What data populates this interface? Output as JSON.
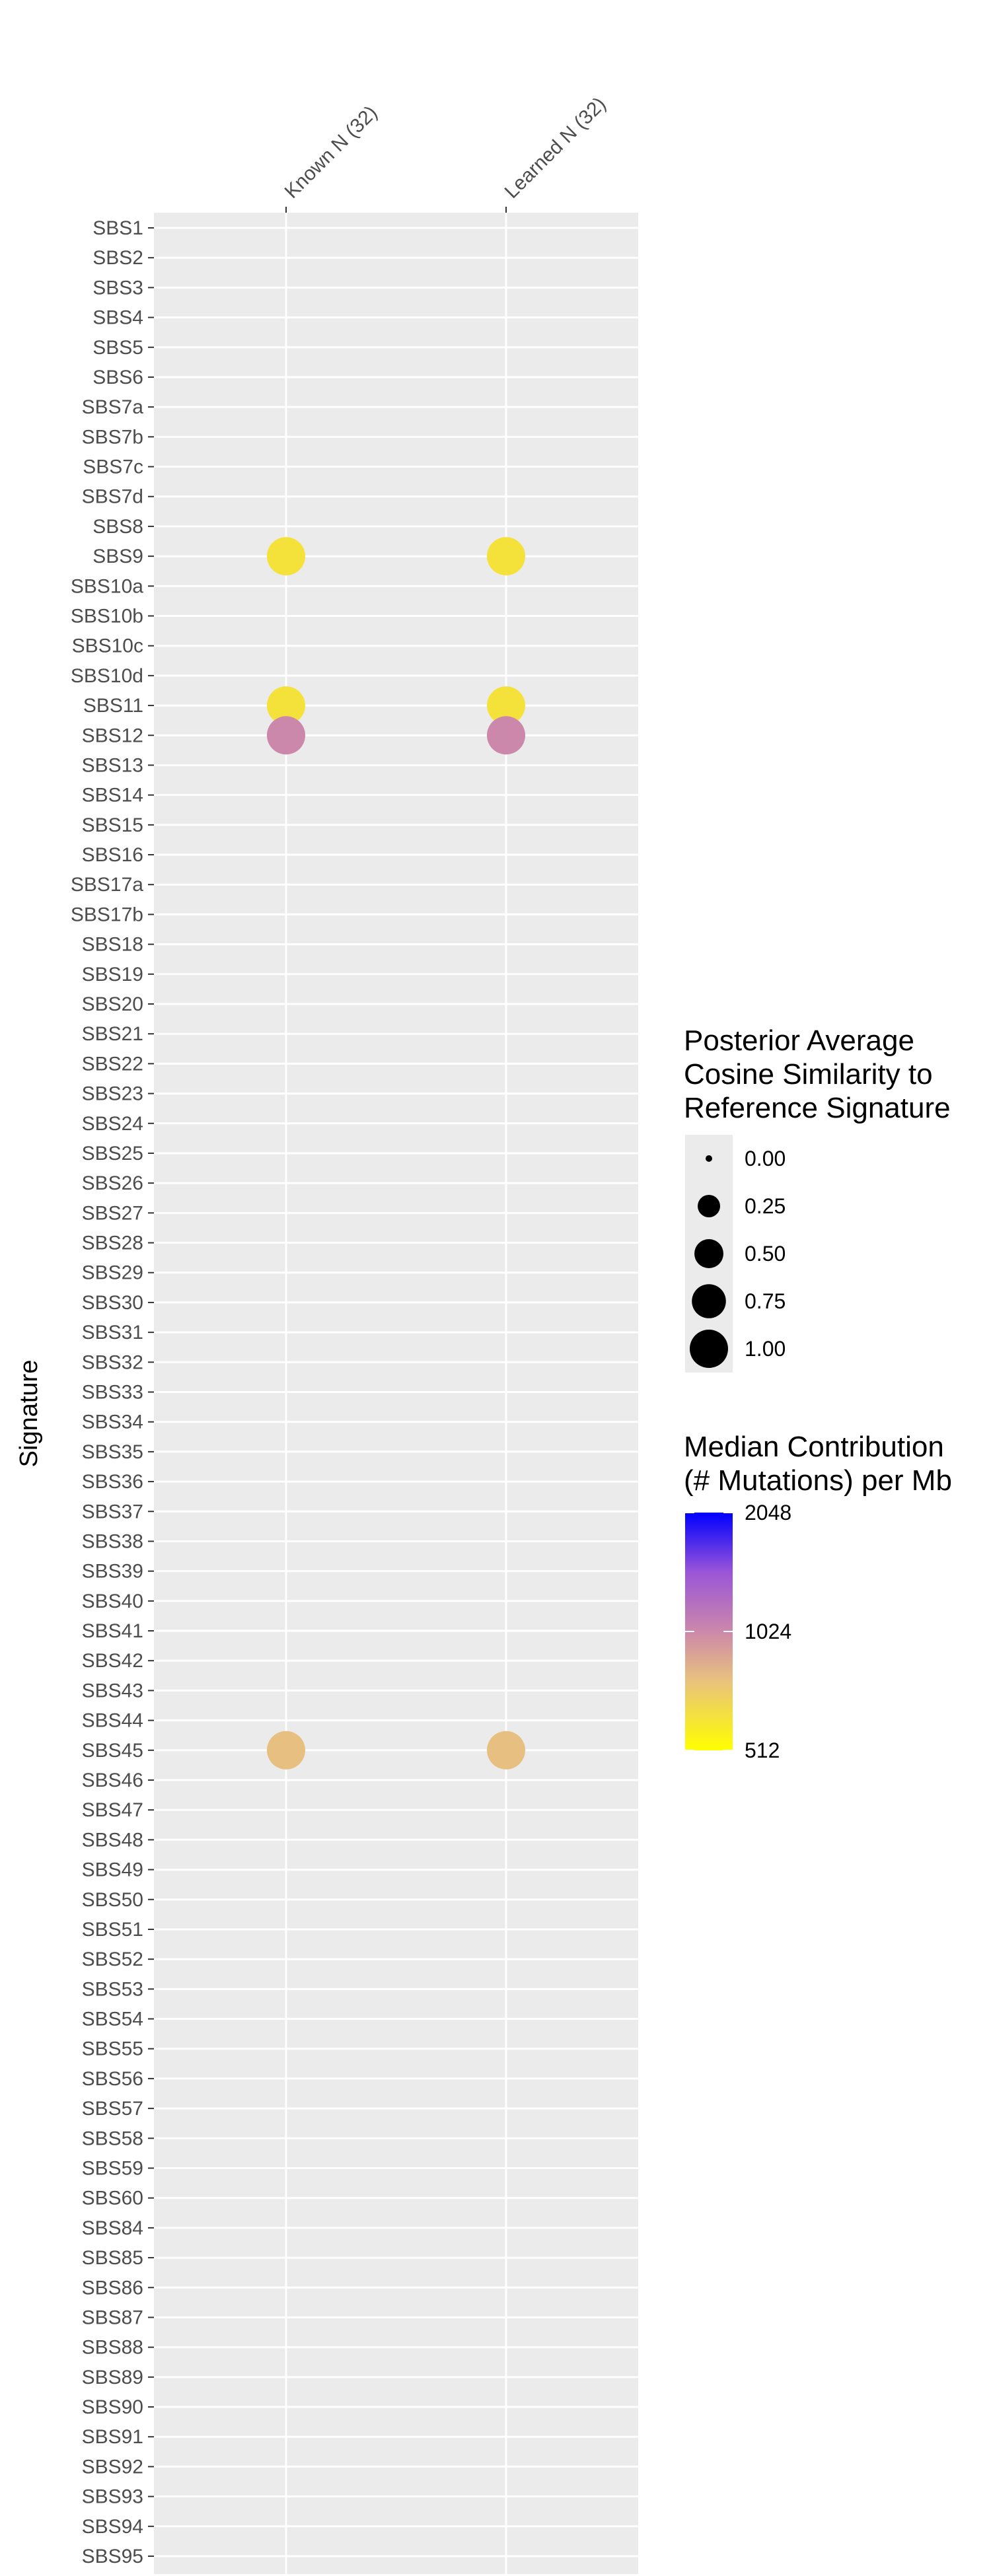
{
  "chart_data": {
    "type": "scatter",
    "ylabel": "Signature",
    "columns": [
      "Known N (32)",
      "Learned N (32)"
    ],
    "signatures": [
      "SBS1",
      "SBS2",
      "SBS3",
      "SBS4",
      "SBS5",
      "SBS6",
      "SBS7a",
      "SBS7b",
      "SBS7c",
      "SBS7d",
      "SBS8",
      "SBS9",
      "SBS10a",
      "SBS10b",
      "SBS10c",
      "SBS10d",
      "SBS11",
      "SBS12",
      "SBS13",
      "SBS14",
      "SBS15",
      "SBS16",
      "SBS17a",
      "SBS17b",
      "SBS18",
      "SBS19",
      "SBS20",
      "SBS21",
      "SBS22",
      "SBS23",
      "SBS24",
      "SBS25",
      "SBS26",
      "SBS27",
      "SBS28",
      "SBS29",
      "SBS30",
      "SBS31",
      "SBS32",
      "SBS33",
      "SBS34",
      "SBS35",
      "SBS36",
      "SBS37",
      "SBS38",
      "SBS39",
      "SBS40",
      "SBS41",
      "SBS42",
      "SBS43",
      "SBS44",
      "SBS45",
      "SBS46",
      "SBS47",
      "SBS48",
      "SBS49",
      "SBS50",
      "SBS51",
      "SBS52",
      "SBS53",
      "SBS54",
      "SBS55",
      "SBS56",
      "SBS57",
      "SBS58",
      "SBS59",
      "SBS60",
      "SBS84",
      "SBS85",
      "SBS86",
      "SBS87",
      "SBS88",
      "SBS89",
      "SBS90",
      "SBS91",
      "SBS92",
      "SBS93",
      "SBS94",
      "SBS95"
    ],
    "points": [
      {
        "column": "Known N (32)",
        "signature": "SBS9",
        "cosine": 1.0,
        "contribution": 620
      },
      {
        "column": "Learned N (32)",
        "signature": "SBS9",
        "cosine": 1.0,
        "contribution": 620
      },
      {
        "column": "Known N (32)",
        "signature": "SBS11",
        "cosine": 1.0,
        "contribution": 620
      },
      {
        "column": "Learned N (32)",
        "signature": "SBS11",
        "cosine": 1.0,
        "contribution": 620
      },
      {
        "column": "Known N (32)",
        "signature": "SBS12",
        "cosine": 1.0,
        "contribution": 1024
      },
      {
        "column": "Learned N (32)",
        "signature": "SBS12",
        "cosine": 1.0,
        "contribution": 1024
      },
      {
        "column": "Known N (32)",
        "signature": "SBS45",
        "cosine": 1.0,
        "contribution": 780
      },
      {
        "column": "Learned N (32)",
        "signature": "SBS45",
        "cosine": 1.0,
        "contribution": 780
      }
    ],
    "size_legend": {
      "title": [
        "Posterior Average",
        "Cosine Similarity to",
        "Reference Signature"
      ],
      "values": [
        0.0,
        0.25,
        0.5,
        0.75,
        1.0
      ],
      "labels": [
        "0.00",
        "0.25",
        "0.50",
        "0.75",
        "1.00"
      ]
    },
    "color_legend": {
      "title": [
        "Median Contribution",
        "(# Mutations) per Mb"
      ],
      "scale": "log2",
      "min": 512,
      "max": 2048,
      "labels": [
        "2048",
        "1024",
        "512"
      ],
      "label_values": [
        2048,
        1024,
        512
      ],
      "colors": {
        "low": "#ffff00",
        "mid": "#cc88aa",
        "high": "#0000ff"
      }
    },
    "panel_color": "#ebebeb",
    "grid_color": "#ffffff"
  }
}
